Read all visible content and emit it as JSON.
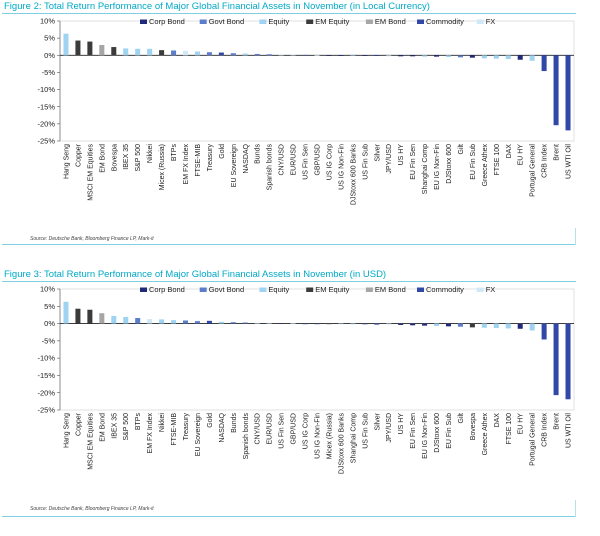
{
  "colors": {
    "Corp Bond": "#1f2a78",
    "Govt Bond": "#5c7ccc",
    "Equity": "#9ed3f2",
    "EM Equity": "#3b3b3b",
    "EM Bond": "#a6a6a6",
    "Commodity": "#3248a8",
    "FX": "#cfe9f9"
  },
  "chart_data": [
    {
      "type": "bar",
      "title": "Figure 2: Total Return Performance of Major Global Financial Assets in November (in Local Currency)",
      "source": "Source: Deutsche Bank, Bloomberg Finance LP, Mark-it",
      "ylim": [
        -25,
        10
      ],
      "yticks": [
        10,
        5,
        0,
        -5,
        -10,
        -15,
        -20,
        -25
      ],
      "ytick_labels": [
        "10%",
        "5%",
        "0%",
        "-5%",
        "-10%",
        "-15%",
        "-20%",
        "-25%"
      ],
      "legend": [
        "Corp Bond",
        "Govt Bond",
        "Equity",
        "EM Equity",
        "EM Bond",
        "Commodity",
        "FX"
      ],
      "legend_position": "top",
      "categories": [
        "Hang Seng",
        "Copper",
        "MSCI EM Equities",
        "EM Bond",
        "Bovespa",
        "IBEX 35",
        "S&P 500",
        "Nikkei",
        "Micex (Russia)",
        "BTPs",
        "EM FX Index",
        "FTSE-MIB",
        "Treasury",
        "Gold",
        "EU Sovereign",
        "NASDAQ",
        "Bunds",
        "Spanish bonds",
        "CNY/USD",
        "EUR/USD",
        "US Fin Sen",
        "GBP/USD",
        "US IG Corp",
        "US IG Non-Fin",
        "DJStoxx 600 Banks",
        "US Fin Sub",
        "Silver",
        "JPY/USD",
        "US HY",
        "EU Fin Sen",
        "Shanghai Comp",
        "EU IG Non-Fin",
        "DJStoxx 600",
        "Gilt",
        "EU Fin Sub",
        "Greece Athex",
        "FTSE 100",
        "DAX",
        "EU HY",
        "Portugal General",
        "CRB Index",
        "Brent",
        "US WTI Oil"
      ],
      "classes": [
        "Equity",
        "EM Equity",
        "EM Equity",
        "EM Bond",
        "EM Equity",
        "Equity",
        "Equity",
        "Equity",
        "EM Equity",
        "Govt Bond",
        "FX",
        "Equity",
        "Govt Bond",
        "Commodity",
        "Govt Bond",
        "Equity",
        "Govt Bond",
        "Govt Bond",
        "FX",
        "FX",
        "Corp Bond",
        "FX",
        "Corp Bond",
        "Corp Bond",
        "Equity",
        "Corp Bond",
        "Commodity",
        "FX",
        "Corp Bond",
        "Corp Bond",
        "Equity",
        "Corp Bond",
        "Equity",
        "Govt Bond",
        "Corp Bond",
        "Equity",
        "Equity",
        "Equity",
        "Corp Bond",
        "Equity",
        "Commodity",
        "Commodity",
        "Commodity"
      ],
      "values": [
        6.3,
        4.3,
        4.0,
        3.0,
        2.4,
        2.0,
        1.9,
        1.9,
        1.5,
        1.4,
        1.3,
        1.1,
        0.9,
        0.8,
        0.6,
        0.5,
        0.4,
        0.3,
        0.2,
        0.2,
        0.1,
        0.1,
        0.0,
        -0.1,
        -0.1,
        -0.1,
        -0.2,
        -0.3,
        -0.3,
        -0.3,
        -0.4,
        -0.4,
        -0.5,
        -0.6,
        -0.7,
        -0.9,
        -1.0,
        -1.1,
        -1.3,
        -1.6,
        -4.6,
        -20.4,
        -21.9
      ]
    },
    {
      "type": "bar",
      "title": "Figure 3: Total Return Performance of Major Global Financial Assets in November (in USD)",
      "source": "Source: Deutsche Bank, Bloomberg Finance LP, Mark-it",
      "ylim": [
        -25,
        10
      ],
      "yticks": [
        10,
        5,
        0,
        -5,
        -10,
        -15,
        -20,
        -25
      ],
      "ytick_labels": [
        "10%",
        "5%",
        "0%",
        "-5%",
        "-10%",
        "-15%",
        "-20%",
        "-25%"
      ],
      "legend": [
        "Corp Bond",
        "Govt Bond",
        "Equity",
        "EM Equity",
        "EM Bond",
        "Commodity",
        "FX"
      ],
      "legend_position": "top",
      "categories": [
        "Hang Seng",
        "Copper",
        "MSCI EM Equities",
        "EM Bond",
        "IBEX 35",
        "S&P 500",
        "BTPs",
        "EM FX Index",
        "Nikkei",
        "FTSE-MIB",
        "Treasury",
        "EU Sovereign",
        "Gold",
        "NASDAQ",
        "Bunds",
        "Spanish bonds",
        "CNY/USD",
        "EUR/USD",
        "US Fin Sen",
        "GBP/USD",
        "US IG Corp",
        "US IG Non-Fin",
        "Micex (Russia)",
        "DJStoxx 600 Banks",
        "Shanghai Comp",
        "US Fin Sub",
        "Silver",
        "JPY/USD",
        "US HY",
        "EU Fin Sen",
        "EU IG Non-Fin",
        "DJStoxx 600",
        "EU Fin Sub",
        "Gilt",
        "Bovespa",
        "Greece Athex",
        "DAX",
        "FTSE 100",
        "EU HY",
        "Portugal General",
        "CRB Index",
        "Brent",
        "US WTI Oil"
      ],
      "classes": [
        "Equity",
        "EM Equity",
        "EM Equity",
        "EM Bond",
        "Equity",
        "Equity",
        "Govt Bond",
        "FX",
        "Equity",
        "Equity",
        "Govt Bond",
        "Govt Bond",
        "Commodity",
        "Equity",
        "Govt Bond",
        "Govt Bond",
        "FX",
        "FX",
        "Corp Bond",
        "FX",
        "Corp Bond",
        "Corp Bond",
        "EM Equity",
        "Equity",
        "Equity",
        "Corp Bond",
        "Commodity",
        "FX",
        "Corp Bond",
        "Corp Bond",
        "Corp Bond",
        "Equity",
        "Corp Bond",
        "Govt Bond",
        "EM Equity",
        "Equity",
        "Equity",
        "Equity",
        "Corp Bond",
        "Equity",
        "Commodity",
        "Commodity",
        "Commodity"
      ],
      "values": [
        6.3,
        4.3,
        4.0,
        3.0,
        2.2,
        1.9,
        1.6,
        1.3,
        1.2,
        1.0,
        0.9,
        0.7,
        0.8,
        0.5,
        0.4,
        0.3,
        0.2,
        0.2,
        0.1,
        0.1,
        0.0,
        -0.1,
        -0.1,
        -0.1,
        -0.2,
        -0.2,
        -0.3,
        -0.3,
        -0.4,
        -0.5,
        -0.6,
        -0.7,
        -0.8,
        -0.9,
        -1.1,
        -1.2,
        -1.3,
        -1.4,
        -1.5,
        -2.0,
        -4.6,
        -20.7,
        -21.9
      ]
    }
  ]
}
